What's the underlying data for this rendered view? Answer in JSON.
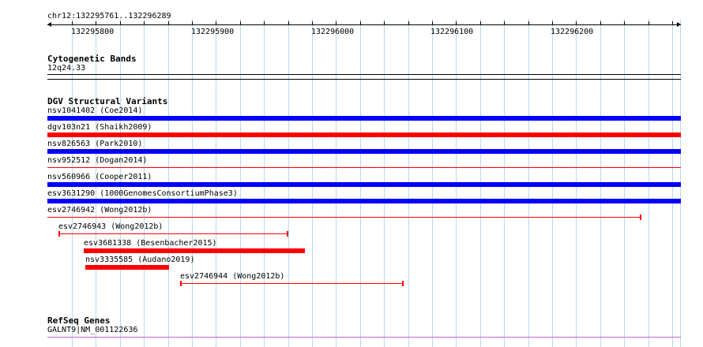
{
  "header": {
    "region": "chr12:132295761..132296289",
    "ticks": [
      "132295800",
      "132295900",
      "132296000",
      "132296100",
      "132296200"
    ]
  },
  "tracks": {
    "cytoband": {
      "title": "Cytogenetic Bands",
      "band": "12q24.33"
    },
    "dgv": {
      "title": "DGV Structural Variants",
      "variants": [
        {
          "label": "nsv1041402  (Coe2014)",
          "color": "#0000ff",
          "style": "thick"
        },
        {
          "label": "dgv103n21  (Shaikh2009)",
          "color": "#ff0000",
          "style": "thick"
        },
        {
          "label": "nsv826563  (Park2010)",
          "color": "#0000ff",
          "style": "thick"
        },
        {
          "label": "nsv952512  (Dogan2014)",
          "color": "#ff0000",
          "style": "thin"
        },
        {
          "label": "nsv560966  (Cooper2011)",
          "color": "#0000ff",
          "style": "thick"
        },
        {
          "label": "esv3631290  (1000GenomesConsortiumPhase3)",
          "color": "#0000ff",
          "style": "thick"
        },
        {
          "label": "esv2746942  (Wong2012b)",
          "color": "#ff0000",
          "style": "thin"
        },
        {
          "label": "esv2746943  (Wong2012b)",
          "color": "#ff0000",
          "style": "thin"
        },
        {
          "label": "esv3681338  (Besenbacher2015)",
          "color": "#ff0000",
          "style": "thick"
        },
        {
          "label": "nsv3335585  (Audano2019)",
          "color": "#ff0000",
          "style": "thick"
        },
        {
          "label": "esv2746944  (Wong2012b)",
          "color": "#ff0000",
          "style": "thin"
        }
      ]
    },
    "refseq": {
      "title": "RefSeq Genes",
      "gene": "GALNT9|NM_001122636",
      "color": "#cc66cc"
    }
  },
  "colors": {
    "grid": "#b9d9ec"
  }
}
